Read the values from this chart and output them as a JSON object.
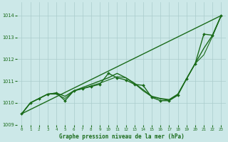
{
  "title": "Graphe pression niveau de la mer (hPa)",
  "bg_color": "#cce8e8",
  "grid_color": "#aacccc",
  "line_color": "#1a6b1a",
  "marker_color": "#1a6b1a",
  "xlim": [
    -0.5,
    23.5
  ],
  "ylim": [
    1009.0,
    1014.6
  ],
  "yticks": [
    1009,
    1010,
    1011,
    1012,
    1013,
    1014
  ],
  "xticks": [
    0,
    1,
    2,
    3,
    4,
    5,
    6,
    7,
    8,
    9,
    10,
    11,
    12,
    13,
    14,
    15,
    16,
    17,
    18,
    19,
    20,
    21,
    22,
    23
  ],
  "series": [
    {
      "x": [
        0,
        1,
        2,
        3,
        4,
        5,
        6,
        7,
        8,
        9,
        10,
        11,
        12,
        13,
        14,
        15,
        16,
        17,
        18,
        19,
        20,
        21,
        22,
        23
      ],
      "y": [
        1009.5,
        1010.0,
        1010.2,
        1010.4,
        1010.45,
        1010.1,
        1010.55,
        1010.65,
        1010.75,
        1010.85,
        1011.35,
        1011.15,
        1011.05,
        1010.85,
        1010.8,
        1010.25,
        1010.1,
        1010.1,
        1010.35,
        1011.1,
        1011.8,
        1013.15,
        1013.1,
        1014.0
      ],
      "has_markers": true,
      "linewidth": 1.0
    },
    {
      "x": [
        0,
        1,
        2,
        3,
        4,
        5,
        6,
        7,
        8,
        9,
        10,
        11,
        12,
        13,
        14,
        15,
        16,
        17,
        18,
        19,
        20,
        21,
        22,
        23
      ],
      "y": [
        1009.5,
        1010.0,
        1010.2,
        1010.4,
        1010.45,
        1010.3,
        1010.55,
        1010.7,
        1010.85,
        1011.0,
        1011.15,
        1011.35,
        1011.15,
        1010.9,
        1010.6,
        1010.3,
        1010.2,
        1010.15,
        1010.4,
        1011.1,
        1011.8,
        1012.5,
        1013.1,
        1014.0
      ],
      "has_markers": false,
      "linewidth": 1.0
    },
    {
      "x": [
        0,
        23
      ],
      "y": [
        1009.5,
        1014.0
      ],
      "has_markers": false,
      "linewidth": 1.0
    },
    {
      "x": [
        0,
        1,
        2,
        3,
        4,
        5,
        6,
        7,
        8,
        9,
        10,
        11,
        12,
        13,
        14,
        15,
        16,
        17,
        18,
        19,
        20,
        21,
        22,
        23
      ],
      "y": [
        1009.5,
        1010.0,
        1010.2,
        1010.4,
        1010.4,
        1010.2,
        1010.55,
        1010.65,
        1010.78,
        1010.9,
        1011.05,
        1011.2,
        1011.15,
        1010.88,
        1010.55,
        1010.28,
        1010.18,
        1010.12,
        1010.38,
        1011.1,
        1011.8,
        1012.2,
        1013.05,
        1014.0
      ],
      "has_markers": false,
      "linewidth": 0.8
    }
  ]
}
